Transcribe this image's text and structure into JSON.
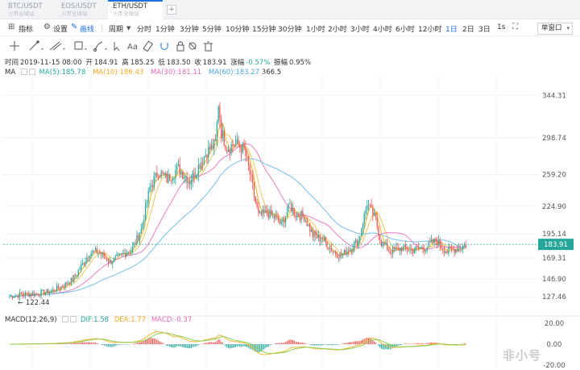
{
  "tabs": [
    {
      "pair": "BTC/USDT",
      "exchange": "火币全球站",
      "active": false
    },
    {
      "pair": "EOS/USDT",
      "exchange": "火币全球站",
      "active": false
    },
    {
      "pair": "ETH/USDT",
      "exchange": "火币全球站",
      "active": true
    }
  ],
  "tab_add_label": "+",
  "toolbar": {
    "indicators": "指标",
    "settings": "设置",
    "drawing": "画线",
    "period": "周期",
    "intervals": [
      "分时",
      "1分钟",
      "3分钟",
      "5分钟",
      "10分钟",
      "15分钟",
      "30分钟",
      "1小时",
      "2小时",
      "3小时",
      "4小时",
      "6小时",
      "12小时",
      "1日",
      "2日",
      "3日",
      "1s"
    ],
    "active_interval": "1日",
    "window_mode": "单窗口"
  },
  "info": {
    "time_label": "时间",
    "time": "2019-11-15 08:00",
    "open_label": "开",
    "open": "184.91",
    "high_label": "高",
    "high": "185.25",
    "low_label": "低",
    "low": "183.50",
    "close_label": "收",
    "close": "183.91",
    "change_label": "涨幅",
    "change": "-0.57%",
    "amplitude_label": "振幅",
    "amplitude": "0.95%"
  },
  "ma_legend": {
    "title": "MA",
    "ma5": "MA(5):185.78",
    "ma10": "MA(10):186.43",
    "ma30": "MA(30):181.11",
    "ma60": "MA(60):183.27",
    "extra": "366.5"
  },
  "macd_legend": {
    "title": "MACD(12,26,9)",
    "dif": "DIF:1.58",
    "dea": "DEA:1.77",
    "macd": "MACD:-0.37"
  },
  "colors": {
    "up": "#26a69a",
    "down": "#ef5350",
    "ma5": "#f5b735",
    "ma10": "#f0ca6e",
    "ma30": "#e889c4",
    "ma60": "#7ec4e6",
    "dif": "#f5b735",
    "dea": "#8bcf4f",
    "accent": "#1e6fe6"
  },
  "chart_data": {
    "type": "candlestick",
    "price_ticks": [
      344.31,
      298.74,
      259.2,
      224.9,
      195.14,
      169.31,
      146.9,
      127.46
    ],
    "price_range": [
      112,
      368
    ],
    "last_price": "183.91",
    "low_marker": "122.44",
    "macd_ticks": [
      "20.00",
      "0.00",
      "-20.00"
    ],
    "macd_range": [
      -24,
      24
    ],
    "candles_count": 185,
    "series_note": ""
  },
  "watermark": "非小号"
}
